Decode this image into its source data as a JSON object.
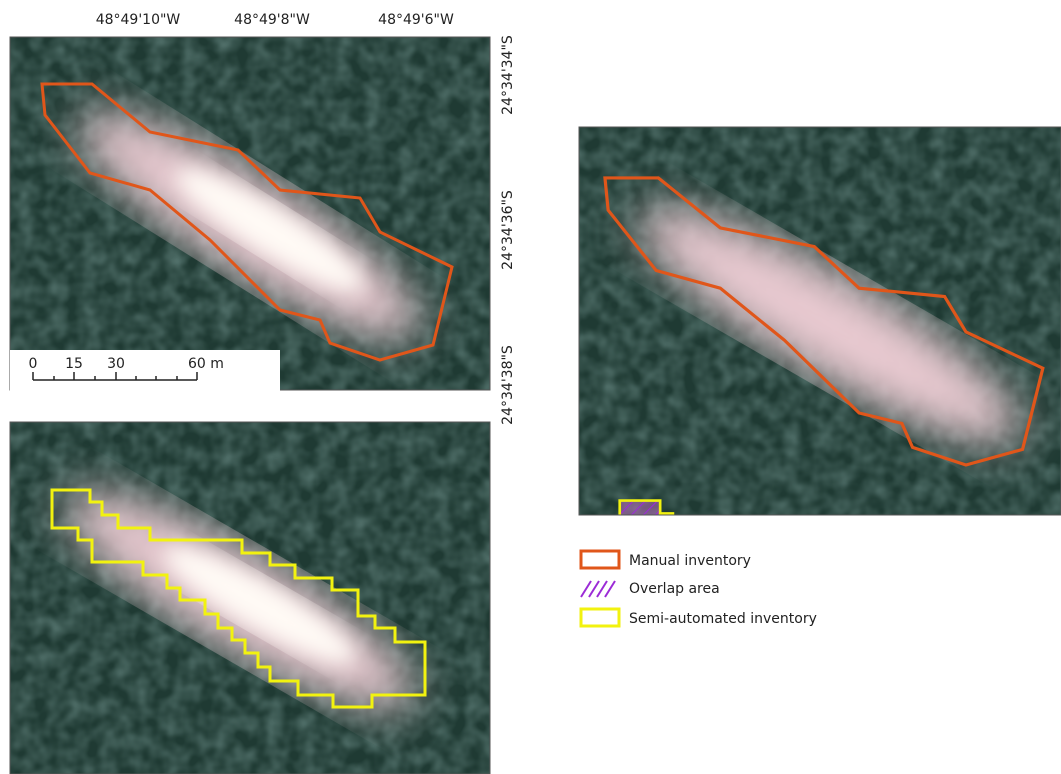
{
  "map": {
    "longitude_labels": [
      "48°49'10\"W",
      "48°49'8\"W",
      "48°49'6\"W"
    ],
    "latitude_labels": [
      "24°34'34\"S",
      "24°34'36\"S",
      "24°34'38\"S"
    ],
    "scale_bar": {
      "labels": [
        "0",
        "15",
        "30",
        "60 m"
      ]
    },
    "legend": [
      {
        "label": "Manual inventory"
      },
      {
        "label": "Overlap area"
      },
      {
        "label": "Semi-automated inventory"
      }
    ]
  }
}
